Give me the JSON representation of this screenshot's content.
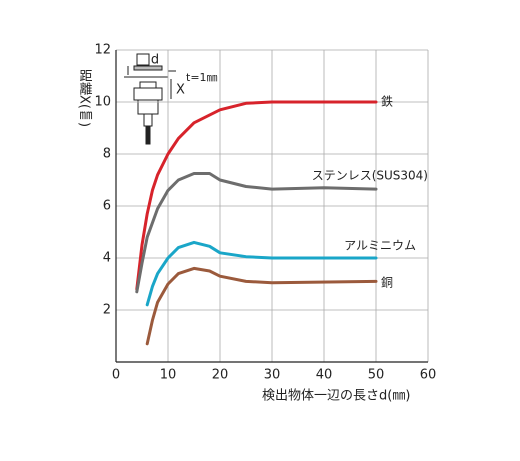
{
  "chart_data": {
    "type": "line",
    "y_label": "距離X(㎜)",
    "x_label": "検出物体一辺の長さd(㎜)",
    "annotations": [
      "d",
      "X",
      "t=1㎜"
    ],
    "xlim": [
      0,
      60
    ],
    "xticks": [
      0,
      10,
      20,
      30,
      40,
      50,
      60
    ],
    "ylim": [
      0,
      12
    ],
    "yticks": [
      2,
      4,
      6,
      8,
      10,
      12
    ],
    "grid": true,
    "series": [
      {
        "name": "鉄",
        "color": "#d7232b",
        "x": [
          4,
          5,
          6,
          7,
          8,
          10,
          12,
          15,
          20,
          25,
          30,
          40,
          50
        ],
        "values": [
          2.8,
          4.5,
          5.7,
          6.6,
          7.2,
          8.0,
          8.6,
          9.2,
          9.7,
          9.95,
          10,
          10,
          10
        ]
      },
      {
        "name": "ステンレス(SUS304)",
        "color": "#6d6d6d",
        "x": [
          4,
          5,
          6,
          8,
          10,
          12,
          15,
          18,
          20,
          25,
          30,
          40,
          50
        ],
        "values": [
          2.7,
          3.8,
          4.8,
          5.9,
          6.6,
          7.0,
          7.25,
          7.25,
          7.0,
          6.75,
          6.65,
          6.7,
          6.65
        ]
      },
      {
        "name": "アルミニウム",
        "color": "#1aa6c8",
        "x": [
          6,
          7,
          8,
          10,
          12,
          15,
          18,
          20,
          25,
          30,
          50
        ],
        "values": [
          2.2,
          2.9,
          3.4,
          4.0,
          4.4,
          4.6,
          4.45,
          4.2,
          4.05,
          4.0,
          4.0
        ]
      },
      {
        "name": "銅",
        "color": "#9b5a3c",
        "x": [
          6,
          7,
          8,
          10,
          12,
          15,
          18,
          20,
          25,
          30,
          50
        ],
        "values": [
          0.7,
          1.6,
          2.3,
          3.0,
          3.4,
          3.6,
          3.5,
          3.3,
          3.1,
          3.05,
          3.1
        ]
      }
    ]
  }
}
